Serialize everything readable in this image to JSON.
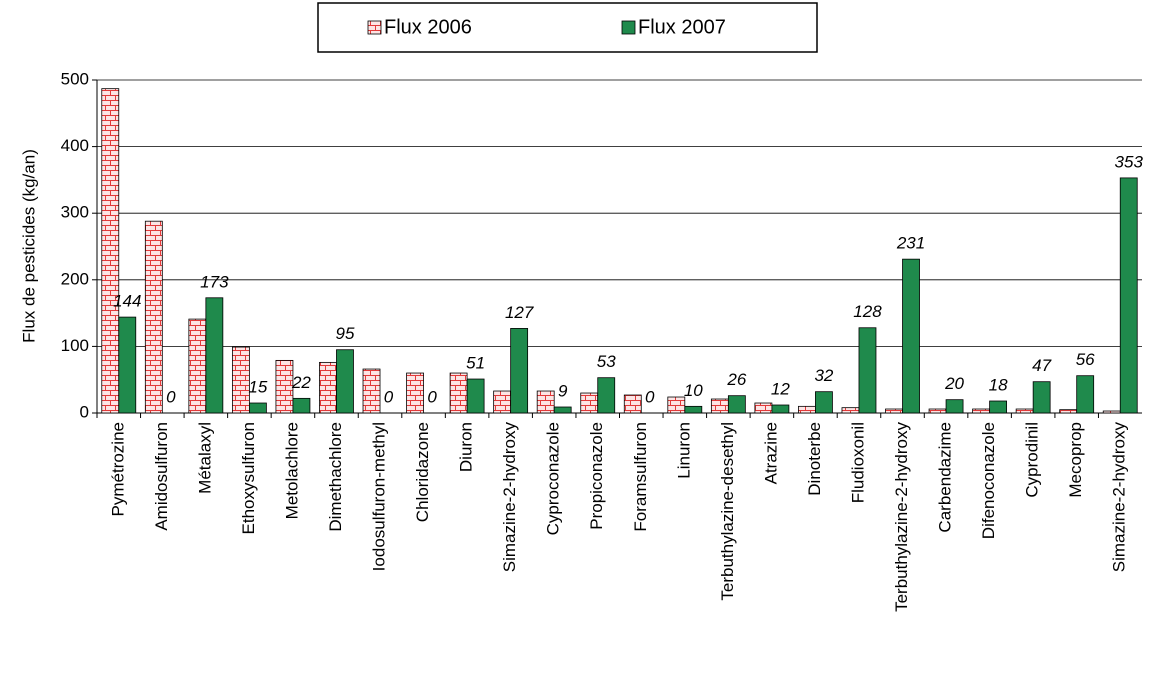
{
  "chart_data": {
    "type": "bar",
    "y_label": "Flux de pesticides  (kg/an)",
    "categories": [
      "Pymétrozine",
      "Amidosulfuron",
      "Métalaxyl",
      "Ethoxysulfuron",
      "Metolachlore",
      "Dimethachlore",
      "Iodosulfuron-methyl",
      "Chloridazone",
      "Diuron",
      "Simazine-2-hydroxy",
      "Cyproconazole",
      "Propiconazole",
      "Foramsulfuron",
      "Linuron",
      "Terbuthylazine-desethyl",
      "Atrazine",
      "Dinoterbe",
      "Fludioxonil",
      "Terbuthylazine-2-hydroxy",
      "Carbendazime",
      "Difenoconazole",
      "Cyprodinil",
      "Mecoprop",
      "Simazine-2-hydroxy"
    ],
    "series": [
      {
        "name": "Flux 2006",
        "color": "#e23a3a",
        "values": [
          487,
          288,
          141,
          99,
          79,
          76,
          66,
          60,
          60,
          33,
          33,
          30,
          27,
          24,
          21,
          15,
          10,
          8,
          6,
          6,
          6,
          6,
          5,
          3
        ]
      },
      {
        "name": "Flux 2007",
        "color": "#1f8a4c",
        "values": [
          144,
          0,
          173,
          15,
          22,
          95,
          0,
          0,
          51,
          127,
          9,
          53,
          0,
          10,
          26,
          12,
          32,
          128,
          231,
          20,
          18,
          47,
          56,
          353
        ]
      }
    ],
    "ylim": [
      0,
      500
    ],
    "yticks": [
      0,
      100,
      200,
      300,
      400,
      500
    ],
    "grid": true
  }
}
